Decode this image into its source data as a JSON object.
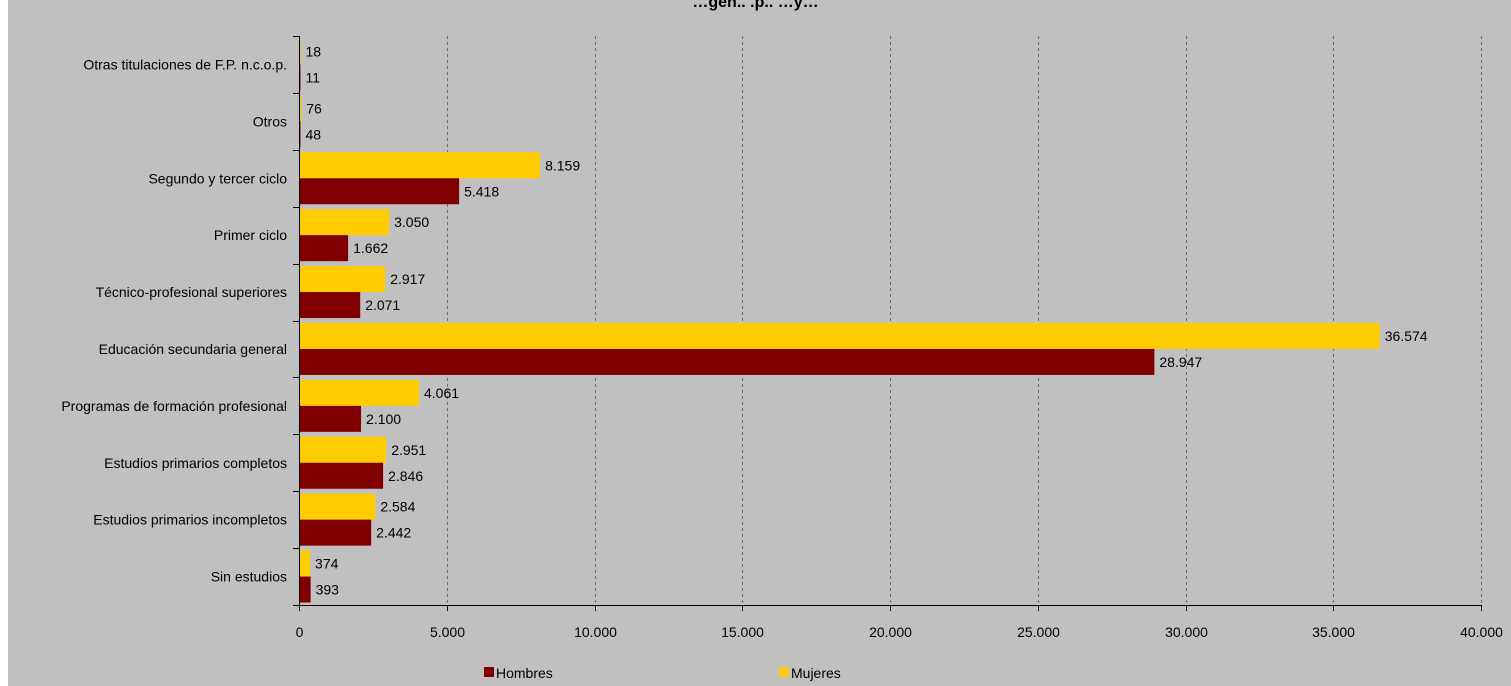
{
  "chart_data": {
    "type": "bar",
    "orientation": "horizontal",
    "title": "…gen.. .p.. …y…",
    "categories": [
      "Otras titulaciones de F.P. n.c.o.p.",
      "Otros",
      "Segundo y tercer ciclo",
      "Primer ciclo",
      "Técnico-profesional superiores",
      "Educación secundaria general",
      "Programas de formación profesional",
      "Estudios primarios completos",
      "Estudios primarios incompletos",
      "Sin estudios"
    ],
    "series": [
      {
        "name": "Mujeres",
        "color": "#ffcc00",
        "values": [
          18,
          76,
          8159,
          3050,
          2917,
          36574,
          4061,
          2951,
          2584,
          374
        ],
        "labels": [
          "18",
          "76",
          "8.159",
          "3.050",
          "2.917",
          "36.574",
          "4.061",
          "2.951",
          "2.584",
          "374"
        ]
      },
      {
        "name": "Hombres",
        "color": "#800000",
        "values": [
          11,
          48,
          5418,
          1662,
          2071,
          28947,
          2100,
          2846,
          2442,
          393
        ],
        "labels": [
          "11",
          "48",
          "5.418",
          "1.662",
          "2.071",
          "28.947",
          "2.100",
          "2.846",
          "2.442",
          "393"
        ]
      }
    ],
    "xlim": [
      0,
      40000
    ],
    "xticks": [
      0,
      5000,
      10000,
      15000,
      20000,
      25000,
      30000,
      35000,
      40000
    ],
    "xtick_labels": [
      "0",
      "5.000",
      "10.000",
      "15.000",
      "20.000",
      "25.000",
      "30.000",
      "35.000",
      "40.000"
    ],
    "grid": "vertical dashed",
    "legend_position": "bottom",
    "legend": [
      "Hombres",
      "Mujeres"
    ],
    "background": "#c0c0c0"
  }
}
